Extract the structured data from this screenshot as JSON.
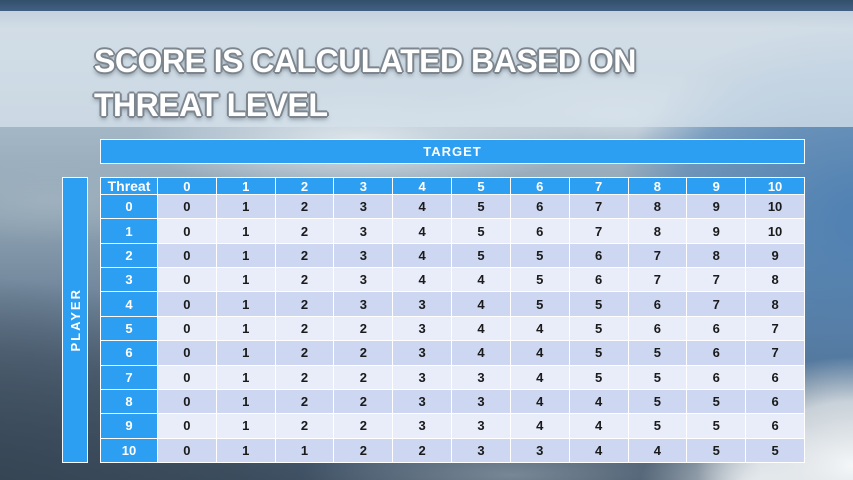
{
  "title": {
    "line1": "SCORE IS CALCULATED BASED ON",
    "line2": "THREAT LEVEL"
  },
  "matrix": {
    "target_label": "TARGET",
    "player_label": "PLAYER",
    "corner_label": "Threat",
    "columns": [
      "0",
      "1",
      "2",
      "3",
      "4",
      "5",
      "6",
      "7",
      "8",
      "9",
      "10"
    ],
    "rows": [
      {
        "label": "0",
        "values": [
          0,
          1,
          2,
          3,
          4,
          5,
          6,
          7,
          8,
          9,
          10
        ]
      },
      {
        "label": "1",
        "values": [
          0,
          1,
          2,
          3,
          4,
          5,
          6,
          7,
          8,
          9,
          10
        ]
      },
      {
        "label": "2",
        "values": [
          0,
          1,
          2,
          3,
          4,
          5,
          5,
          6,
          7,
          8,
          9
        ]
      },
      {
        "label": "3",
        "values": [
          0,
          1,
          2,
          3,
          4,
          4,
          5,
          6,
          7,
          7,
          8
        ]
      },
      {
        "label": "4",
        "values": [
          0,
          1,
          2,
          3,
          3,
          4,
          5,
          5,
          6,
          7,
          8
        ]
      },
      {
        "label": "5",
        "values": [
          0,
          1,
          2,
          2,
          3,
          4,
          4,
          5,
          6,
          6,
          7
        ]
      },
      {
        "label": "6",
        "values": [
          0,
          1,
          2,
          2,
          3,
          4,
          4,
          5,
          5,
          6,
          7
        ]
      },
      {
        "label": "7",
        "values": [
          0,
          1,
          2,
          2,
          3,
          3,
          4,
          5,
          5,
          6,
          6
        ]
      },
      {
        "label": "8",
        "values": [
          0,
          1,
          2,
          2,
          3,
          3,
          4,
          4,
          5,
          5,
          6
        ]
      },
      {
        "label": "9",
        "values": [
          0,
          1,
          2,
          2,
          3,
          3,
          4,
          4,
          5,
          5,
          6
        ]
      },
      {
        "label": "10",
        "values": [
          0,
          1,
          1,
          2,
          2,
          3,
          3,
          4,
          4,
          5,
          5
        ]
      }
    ]
  },
  "colors": {
    "accent_blue": "#2D9FF2",
    "row_even": "#CDD7F1",
    "row_odd": "#E9EDFA",
    "header_text": "#FFFFFF",
    "body_text": "#1A1A1A"
  },
  "chart_data": {
    "type": "table",
    "title": "SCORE IS CALCULATED BASED ON THREAT LEVEL",
    "column_axis_label": "TARGET",
    "row_axis_label": "PLAYER",
    "corner_header": "Threat",
    "columns": [
      0,
      1,
      2,
      3,
      4,
      5,
      6,
      7,
      8,
      9,
      10
    ],
    "rows": [
      0,
      1,
      2,
      3,
      4,
      5,
      6,
      7,
      8,
      9,
      10
    ],
    "values": [
      [
        0,
        1,
        2,
        3,
        4,
        5,
        6,
        7,
        8,
        9,
        10
      ],
      [
        0,
        1,
        2,
        3,
        4,
        5,
        6,
        7,
        8,
        9,
        10
      ],
      [
        0,
        1,
        2,
        3,
        4,
        5,
        5,
        6,
        7,
        8,
        9
      ],
      [
        0,
        1,
        2,
        3,
        4,
        4,
        5,
        6,
        7,
        7,
        8
      ],
      [
        0,
        1,
        2,
        3,
        3,
        4,
        5,
        5,
        6,
        7,
        8
      ],
      [
        0,
        1,
        2,
        2,
        3,
        4,
        4,
        5,
        6,
        6,
        7
      ],
      [
        0,
        1,
        2,
        2,
        3,
        4,
        4,
        5,
        5,
        6,
        7
      ],
      [
        0,
        1,
        2,
        2,
        3,
        3,
        4,
        5,
        5,
        6,
        6
      ],
      [
        0,
        1,
        2,
        2,
        3,
        3,
        4,
        4,
        5,
        5,
        6
      ],
      [
        0,
        1,
        2,
        2,
        3,
        3,
        4,
        4,
        5,
        5,
        6
      ],
      [
        0,
        1,
        1,
        2,
        2,
        3,
        3,
        4,
        4,
        5,
        5
      ]
    ]
  }
}
